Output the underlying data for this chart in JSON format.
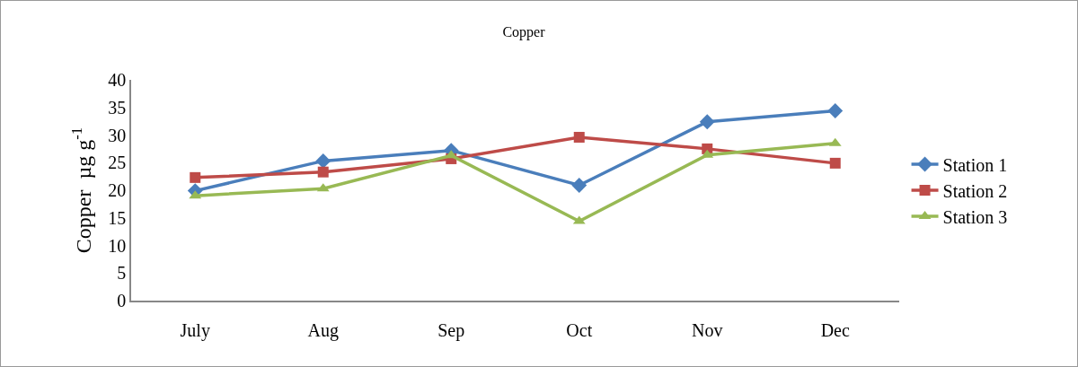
{
  "chart_data": {
    "type": "line",
    "title": "Copper",
    "ylabel": "Copper  µg g$^{-1}$",
    "categories": [
      "July",
      "Aug",
      "Sep",
      "Oct",
      "Nov",
      "Dec"
    ],
    "series": [
      {
        "name": "Station 1",
        "color": "#4a7ebb",
        "marker": "diamond",
        "values": [
          19.9,
          25.3,
          27.2,
          20.9,
          32.4,
          34.4
        ]
      },
      {
        "name": "Station 2",
        "color": "#be4b48",
        "marker": "square",
        "values": [
          22.3,
          23.3,
          25.7,
          29.6,
          27.5,
          24.9
        ]
      },
      {
        "name": "Station 3",
        "color": "#98b954",
        "marker": "triangle",
        "values": [
          19.0,
          20.3,
          26.3,
          14.4,
          26.4,
          28.5
        ]
      }
    ],
    "ylim": [
      0,
      40
    ],
    "yticks": [
      0,
      5,
      10,
      15,
      20,
      25,
      30,
      35,
      40
    ],
    "grid": false,
    "legend": "right",
    "line_style": "solid"
  }
}
